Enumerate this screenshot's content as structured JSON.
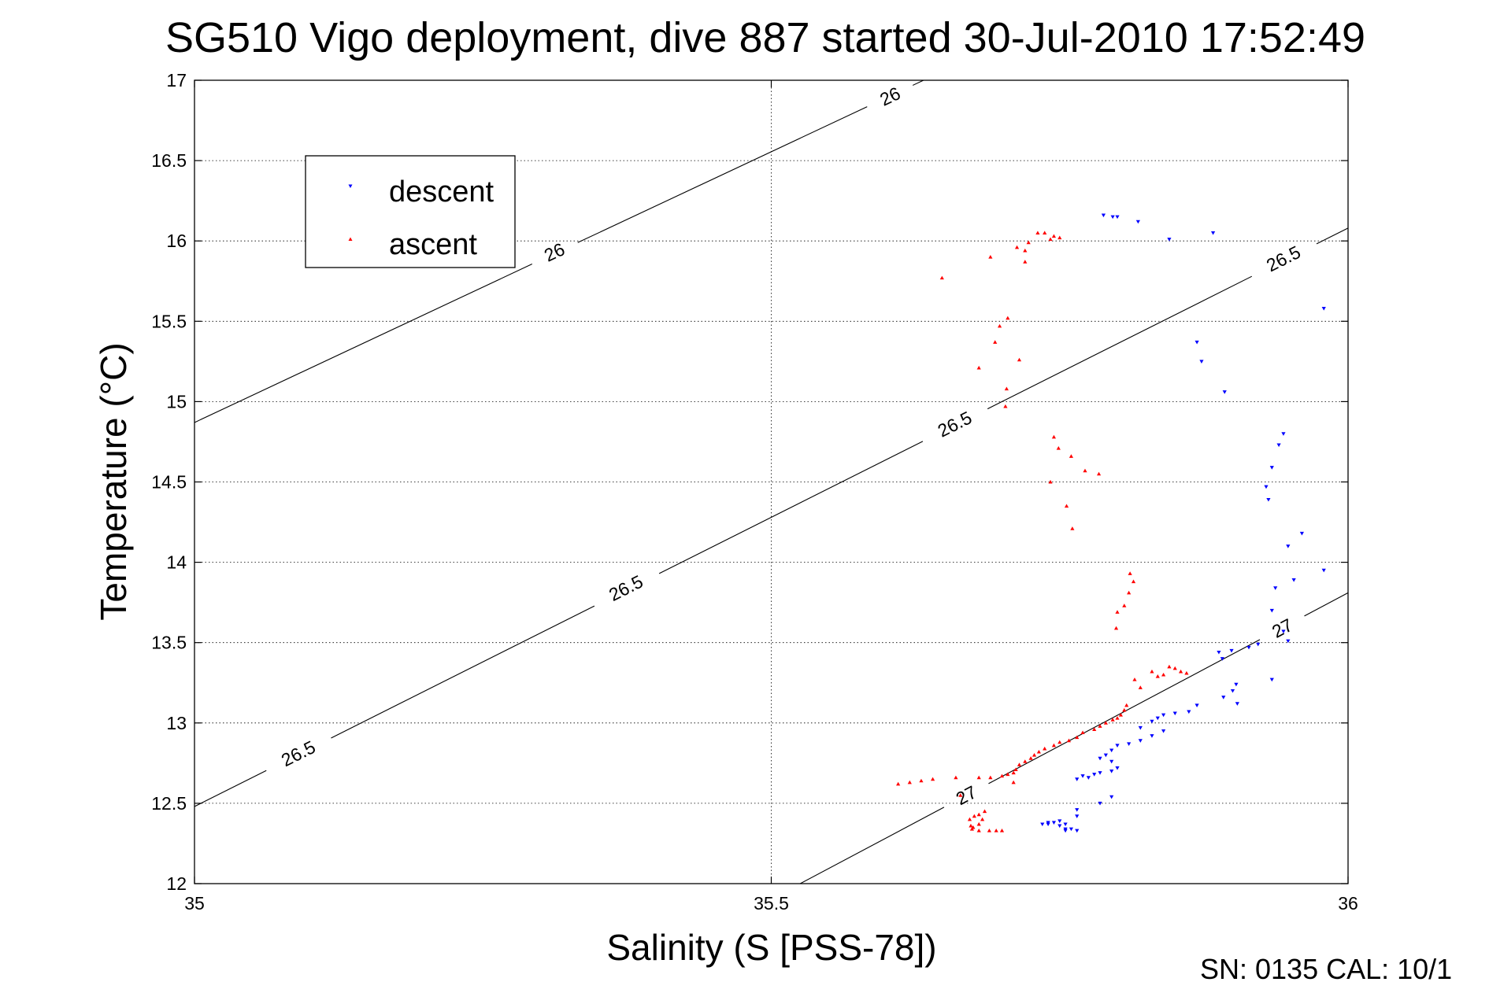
{
  "chart_data": {
    "type": "scatter",
    "title": "SG510 Vigo deployment, dive 887 started 30-Jul-2010 17:52:49",
    "xlabel": "Salinity (S [PSS-78])",
    "ylabel": "Temperature (°C)",
    "xlim": [
      35,
      36
    ],
    "ylim": [
      12,
      17
    ],
    "x_ticks": [
      "35",
      "35.5",
      "36"
    ],
    "y_ticks": [
      "12",
      "12.5",
      "13",
      "13.5",
      "14",
      "14.5",
      "15",
      "15.5",
      "16",
      "16.5",
      "17"
    ],
    "grid": true,
    "legend_position": "top-left",
    "footer": "SN: 0135  CAL: 10/1",
    "series": [
      {
        "name": "descent",
        "color": "#0000ff",
        "marker": "triangle-down",
        "points": [
          [
            35.788,
            16.16
          ],
          [
            35.796,
            16.15
          ],
          [
            35.8,
            16.15
          ],
          [
            35.818,
            16.12
          ],
          [
            35.845,
            16.01
          ],
          [
            35.883,
            16.05
          ],
          [
            35.979,
            15.58
          ],
          [
            35.869,
            15.37
          ],
          [
            35.873,
            15.25
          ],
          [
            35.893,
            15.06
          ],
          [
            35.944,
            14.8
          ],
          [
            35.94,
            14.73
          ],
          [
            35.934,
            14.59
          ],
          [
            35.929,
            14.47
          ],
          [
            35.931,
            14.39
          ],
          [
            35.96,
            14.18
          ],
          [
            35.948,
            14.1
          ],
          [
            35.979,
            13.95
          ],
          [
            35.953,
            13.89
          ],
          [
            35.937,
            13.84
          ],
          [
            35.934,
            13.7
          ],
          [
            35.944,
            13.57
          ],
          [
            35.948,
            13.51
          ],
          [
            35.922,
            13.49
          ],
          [
            35.914,
            13.47
          ],
          [
            35.899,
            13.45
          ],
          [
            35.888,
            13.44
          ],
          [
            35.891,
            13.4
          ],
          [
            35.934,
            13.27
          ],
          [
            35.903,
            13.24
          ],
          [
            35.9,
            13.2
          ],
          [
            35.892,
            13.16
          ],
          [
            35.904,
            13.12
          ],
          [
            35.869,
            13.11
          ],
          [
            35.862,
            13.07
          ],
          [
            35.85,
            13.06
          ],
          [
            35.84,
            13.05
          ],
          [
            35.835,
            13.03
          ],
          [
            35.83,
            13.01
          ],
          [
            35.82,
            12.97
          ],
          [
            35.84,
            12.95
          ],
          [
            35.83,
            12.92
          ],
          [
            35.82,
            12.89
          ],
          [
            35.81,
            12.87
          ],
          [
            35.8,
            12.86
          ],
          [
            35.795,
            12.83
          ],
          [
            35.79,
            12.8
          ],
          [
            35.785,
            12.78
          ],
          [
            35.795,
            12.76
          ],
          [
            35.8,
            12.72
          ],
          [
            35.795,
            12.7
          ],
          [
            35.785,
            12.69
          ],
          [
            35.78,
            12.68
          ],
          [
            35.77,
            12.67
          ],
          [
            35.775,
            12.66
          ],
          [
            35.765,
            12.65
          ],
          [
            35.795,
            12.54
          ],
          [
            35.785,
            12.5
          ],
          [
            35.765,
            12.46
          ],
          [
            35.765,
            12.42
          ],
          [
            35.75,
            12.39
          ],
          [
            35.745,
            12.38
          ],
          [
            35.755,
            12.37
          ],
          [
            35.75,
            12.36
          ],
          [
            35.74,
            12.37
          ],
          [
            35.74,
            12.38
          ],
          [
            35.735,
            12.37
          ],
          [
            35.76,
            12.34
          ],
          [
            35.765,
            12.33
          ],
          [
            35.755,
            12.33
          ],
          [
            35.755,
            12.34
          ]
        ]
      },
      {
        "name": "ascent",
        "color": "#ff0000",
        "marker": "triangle-up",
        "points": [
          [
            35.648,
            15.77
          ],
          [
            35.69,
            15.9
          ],
          [
            35.713,
            15.96
          ],
          [
            35.723,
            15.99
          ],
          [
            35.731,
            16.05
          ],
          [
            35.737,
            16.05
          ],
          [
            35.742,
            16.01
          ],
          [
            35.745,
            16.03
          ],
          [
            35.75,
            16.02
          ],
          [
            35.72,
            15.94
          ],
          [
            35.72,
            15.87
          ],
          [
            35.705,
            15.52
          ],
          [
            35.698,
            15.47
          ],
          [
            35.694,
            15.37
          ],
          [
            35.715,
            15.26
          ],
          [
            35.68,
            15.21
          ],
          [
            35.704,
            15.08
          ],
          [
            35.703,
            14.97
          ],
          [
            35.745,
            14.78
          ],
          [
            35.749,
            14.71
          ],
          [
            35.76,
            14.66
          ],
          [
            35.772,
            14.57
          ],
          [
            35.784,
            14.55
          ],
          [
            35.742,
            14.5
          ],
          [
            35.756,
            14.35
          ],
          [
            35.761,
            14.21
          ],
          [
            35.811,
            13.93
          ],
          [
            35.814,
            13.88
          ],
          [
            35.81,
            13.81
          ],
          [
            35.806,
            13.73
          ],
          [
            35.8,
            13.69
          ],
          [
            35.799,
            13.59
          ],
          [
            35.845,
            13.35
          ],
          [
            35.85,
            13.34
          ],
          [
            35.855,
            13.32
          ],
          [
            35.86,
            13.31
          ],
          [
            35.84,
            13.3
          ],
          [
            35.835,
            13.29
          ],
          [
            35.83,
            13.32
          ],
          [
            35.815,
            13.27
          ],
          [
            35.82,
            13.22
          ],
          [
            35.808,
            13.11
          ],
          [
            35.806,
            13.08
          ],
          [
            35.803,
            13.05
          ],
          [
            35.8,
            13.03
          ],
          [
            35.796,
            13.02
          ],
          [
            35.79,
            13.0
          ],
          [
            35.785,
            12.98
          ],
          [
            35.78,
            12.96
          ],
          [
            35.77,
            12.94
          ],
          [
            35.765,
            12.91
          ],
          [
            35.758,
            12.89
          ],
          [
            35.75,
            12.88
          ],
          [
            35.745,
            12.86
          ],
          [
            35.737,
            12.84
          ],
          [
            35.732,
            12.82
          ],
          [
            35.728,
            12.8
          ],
          [
            35.725,
            12.78
          ],
          [
            35.72,
            12.76
          ],
          [
            35.715,
            12.74
          ],
          [
            35.712,
            12.71
          ],
          [
            35.71,
            12.69
          ],
          [
            35.705,
            12.68
          ],
          [
            35.7,
            12.67
          ],
          [
            35.69,
            12.66
          ],
          [
            35.68,
            12.66
          ],
          [
            35.66,
            12.66
          ],
          [
            35.64,
            12.65
          ],
          [
            35.63,
            12.64
          ],
          [
            35.62,
            12.63
          ],
          [
            35.61,
            12.62
          ],
          [
            35.71,
            12.63
          ],
          [
            35.664,
            12.55
          ],
          [
            35.685,
            12.45
          ],
          [
            35.683,
            12.4
          ],
          [
            35.68,
            12.37
          ],
          [
            35.675,
            12.35
          ],
          [
            35.673,
            12.36
          ],
          [
            35.672,
            12.4
          ],
          [
            35.676,
            12.42
          ],
          [
            35.68,
            12.43
          ],
          [
            35.674,
            12.34
          ],
          [
            35.68,
            12.33
          ],
          [
            35.689,
            12.33
          ],
          [
            35.695,
            12.33
          ],
          [
            35.7,
            12.33
          ]
        ]
      }
    ],
    "contours": [
      {
        "label": "26",
        "points": [
          [
            35.0,
            14.87
          ],
          [
            35.632,
            17.0
          ]
        ],
        "label_positions": [
          [
            35.312,
            15.93
          ],
          [
            35.603,
            16.9
          ]
        ]
      },
      {
        "label": "26.5",
        "points": [
          [
            35.0,
            12.48
          ],
          [
            36.0,
            16.08
          ]
        ],
        "label_positions": [
          [
            35.09,
            12.81
          ],
          [
            35.374,
            13.84
          ],
          [
            35.659,
            14.86
          ],
          [
            35.944,
            15.89
          ]
        ]
      },
      {
        "label": "27",
        "points": [
          [
            35.525,
            12.0
          ],
          [
            36.0,
            13.81
          ]
        ],
        "label_positions": [
          [
            35.669,
            12.55
          ],
          [
            35.943,
            13.59
          ]
        ]
      }
    ]
  }
}
